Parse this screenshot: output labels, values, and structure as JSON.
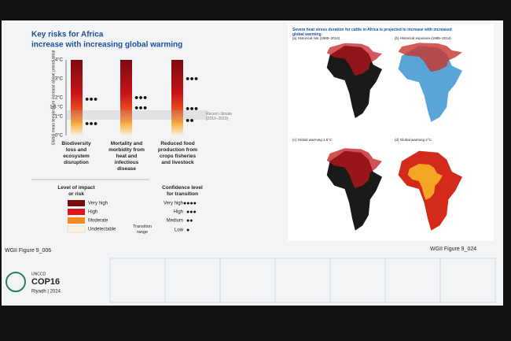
{
  "left": {
    "title": [
      "Key risks for Africa",
      "increase with increasing global warming"
    ],
    "y_axis_label": "Global mean temperature increase above preindustrial",
    "ticks": [
      "4°C",
      "3°C",
      "2°C",
      "1.5 °C",
      "1°C",
      "0°C"
    ],
    "recent_climate": "Recent climate (2010–2019)",
    "columns": [
      "Biodiversity loss and ecosystem disruption",
      "Mortality and morbidity from heat and infectious disease",
      "Reduced food production from crops fisheries and livestock"
    ],
    "legend_risk": {
      "title": "Level of impact or risk",
      "items": [
        "Very high",
        "High",
        "Moderate",
        "Undetectable"
      ]
    },
    "legend_confidence": {
      "title": "Confidence level for transition",
      "items": [
        "Very high",
        "High",
        "Medium",
        "Low"
      ],
      "range": "Transition range"
    },
    "caption": "WGII Figure 9_006"
  },
  "right": {
    "title": "Severe heat stress duration for cattle in Africa is projected to increase with increased global warming",
    "panels": [
      "(a) Historical risk (1985–2014)",
      "(b) Historical exposure (1985–2014)",
      "(c) Global warming 1.5°C",
      "(d) Global warming 2°C"
    ],
    "caption": "WGII Figure 9_024"
  },
  "footer": {
    "org": "UNCCD",
    "event": "COP16",
    "place": "Riyadh | 2024"
  }
}
